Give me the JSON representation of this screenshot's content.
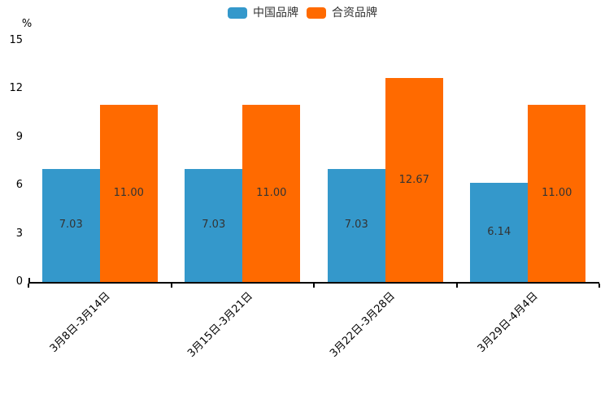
{
  "chart_data": {
    "type": "bar",
    "title": "",
    "ylabel": "%",
    "categories": [
      "3月8日-3月14日",
      "3月15日-3月21日",
      "3月22日-3月28日",
      "3月29日-4月4日"
    ],
    "series": [
      {
        "name": "中国品牌",
        "color": "#3498cb",
        "values": [
          7.03,
          7.03,
          7.03,
          6.14
        ],
        "value_labels": [
          "7.03",
          "7.03",
          "7.03",
          "6.14"
        ]
      },
      {
        "name": "合资品牌",
        "color": "#ff6a00",
        "values": [
          11.0,
          11.0,
          12.67,
          11.0
        ],
        "value_labels": [
          "11.00",
          "11.00",
          "12.67",
          "11.00"
        ]
      }
    ],
    "y_axis": {
      "min": 0,
      "max": 15,
      "ticks": [
        0,
        3,
        6,
        9,
        12,
        15
      ]
    },
    "legend_position": "top-center",
    "grid": false,
    "value_label_color": "#333333",
    "axis_color": "#000000",
    "background_color": "#ffffff"
  }
}
